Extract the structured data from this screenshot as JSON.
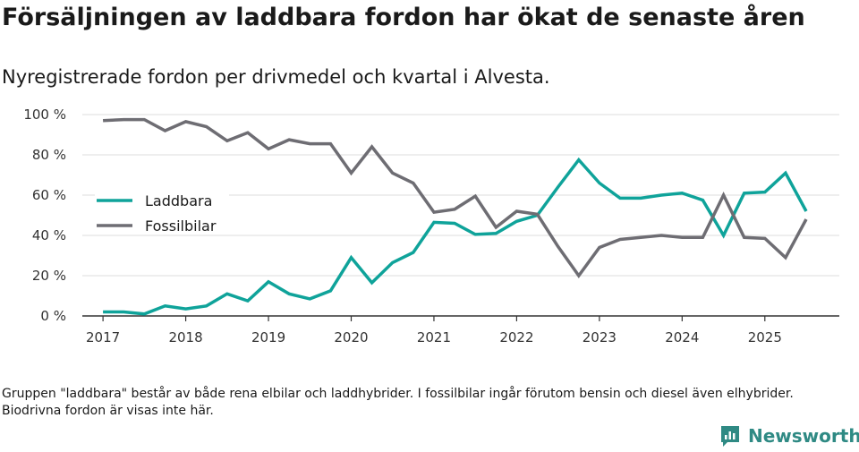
{
  "header": {
    "title": "Försäljningen av laddbara fordon har ökat de senaste åren",
    "subtitle": "Nyregistrerade fordon per drivmedel och kvartal i Alvesta."
  },
  "footer": {
    "note": "Gruppen \"laddbara\" består av både rena elbilar och laddhybrider. I fossilbilar ingår förutom bensin och diesel även elhybrider. Biodrivna fordon är visas inte här.",
    "brand": "Newsworthy"
  },
  "colors": {
    "laddbara": "#0fa39a",
    "fossil": "#6e6d73",
    "grid": "#dcdcdc",
    "axis": "#333333",
    "brand": "#2f8a84"
  },
  "chart_data": {
    "type": "line",
    "title": "Försäljningen av laddbara fordon har ökat de senaste åren",
    "subtitle": "Nyregistrerade fordon per drivmedel och kvartal i Alvesta.",
    "xlabel": "",
    "ylabel": "",
    "x": [
      2017.0,
      2017.25,
      2017.5,
      2017.75,
      2018.0,
      2018.25,
      2018.5,
      2018.75,
      2019.0,
      2019.25,
      2019.5,
      2019.75,
      2020.0,
      2020.25,
      2020.5,
      2020.75,
      2021.0,
      2021.25,
      2021.5,
      2021.75,
      2022.0,
      2022.25,
      2022.5,
      2022.75,
      2023.0,
      2023.25,
      2023.5,
      2023.75,
      2024.0,
      2024.25,
      2024.5,
      2024.75,
      2025.0,
      2025.25,
      2025.5
    ],
    "xlim": [
      2016.75,
      2025.9
    ],
    "x_ticks": [
      2017,
      2018,
      2019,
      2020,
      2021,
      2022,
      2023,
      2024,
      2025
    ],
    "x_tick_labels": [
      "2017",
      "2018",
      "2019",
      "2020",
      "2021",
      "2022",
      "2023",
      "2024",
      "2025"
    ],
    "ylim": [
      0,
      100
    ],
    "y_ticks": [
      0,
      20,
      40,
      60,
      80,
      100
    ],
    "y_tick_labels": [
      "0 %",
      "20 %",
      "40 %",
      "60 %",
      "80 %",
      "100 %"
    ],
    "grid": true,
    "legend_position": "left-middle",
    "series": [
      {
        "name": "Laddbara",
        "color": "#0fa39a",
        "values": [
          2,
          2,
          1,
          5,
          3.5,
          5,
          11,
          7.5,
          17,
          11,
          8.5,
          12.5,
          29,
          16.5,
          26.5,
          31.5,
          46.5,
          46,
          40.5,
          41,
          47,
          50,
          64,
          77.5,
          66,
          58.5,
          58.5,
          60,
          61,
          57.5,
          40,
          61,
          61.5,
          71,
          52
        ]
      },
      {
        "name": "Fossilbilar",
        "color": "#6e6d73",
        "values": [
          97,
          97.5,
          97.5,
          92,
          96.5,
          94,
          87,
          91,
          83,
          87.5,
          85.5,
          85.5,
          71,
          84,
          71,
          66,
          51.5,
          53,
          59.5,
          44,
          52,
          50.5,
          34.5,
          20,
          34,
          38,
          39,
          40,
          39,
          39,
          60,
          39,
          38.5,
          29,
          48
        ]
      }
    ]
  }
}
